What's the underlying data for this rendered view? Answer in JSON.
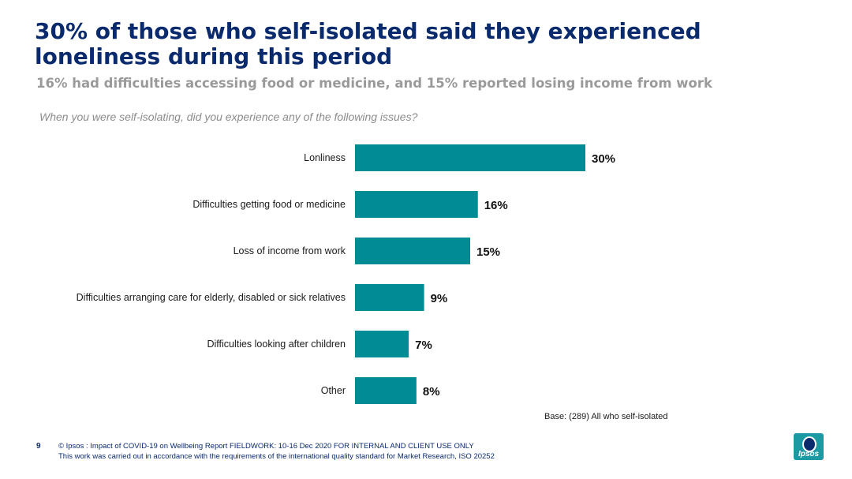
{
  "header": {
    "title": "30% of those who self-isolated said they experienced loneliness during this period",
    "subtitle": "16% had difficulties accessing food or medicine, and 15% reported losing income from work",
    "question": "When you were self-isolating, did you experience any of the following issues?"
  },
  "chart_data": {
    "type": "bar",
    "orientation": "horizontal",
    "categories": [
      "Lonliness",
      "Difficulties getting food or medicine",
      "Loss of income from work",
      "Difficulties arranging care for elderly, disabled or sick relatives",
      "Difficulties looking after children",
      "Other"
    ],
    "values": [
      30,
      16,
      15,
      9,
      7,
      8
    ],
    "data_labels": [
      "30%",
      "16%",
      "15%",
      "9%",
      "7%",
      "8%"
    ],
    "unit": "%",
    "xlim": [
      0,
      30
    ],
    "grid": false,
    "bar_color": "#008b95"
  },
  "base_note": "Base: (289) All who self-isolated",
  "footer": {
    "page_number": "9",
    "line1": "© Ipsos : Impact of COVID-19 on Wellbeing Report FIELDWORK: 10-16 Dec 2020 FOR INTERNAL AND CLIENT USE ONLY",
    "line2": "This work was carried out in accordance with the requirements of the international quality standard for Market Research, ISO 20252"
  },
  "logo": {
    "text": "Ipsos",
    "color": "#1b9aa4"
  }
}
